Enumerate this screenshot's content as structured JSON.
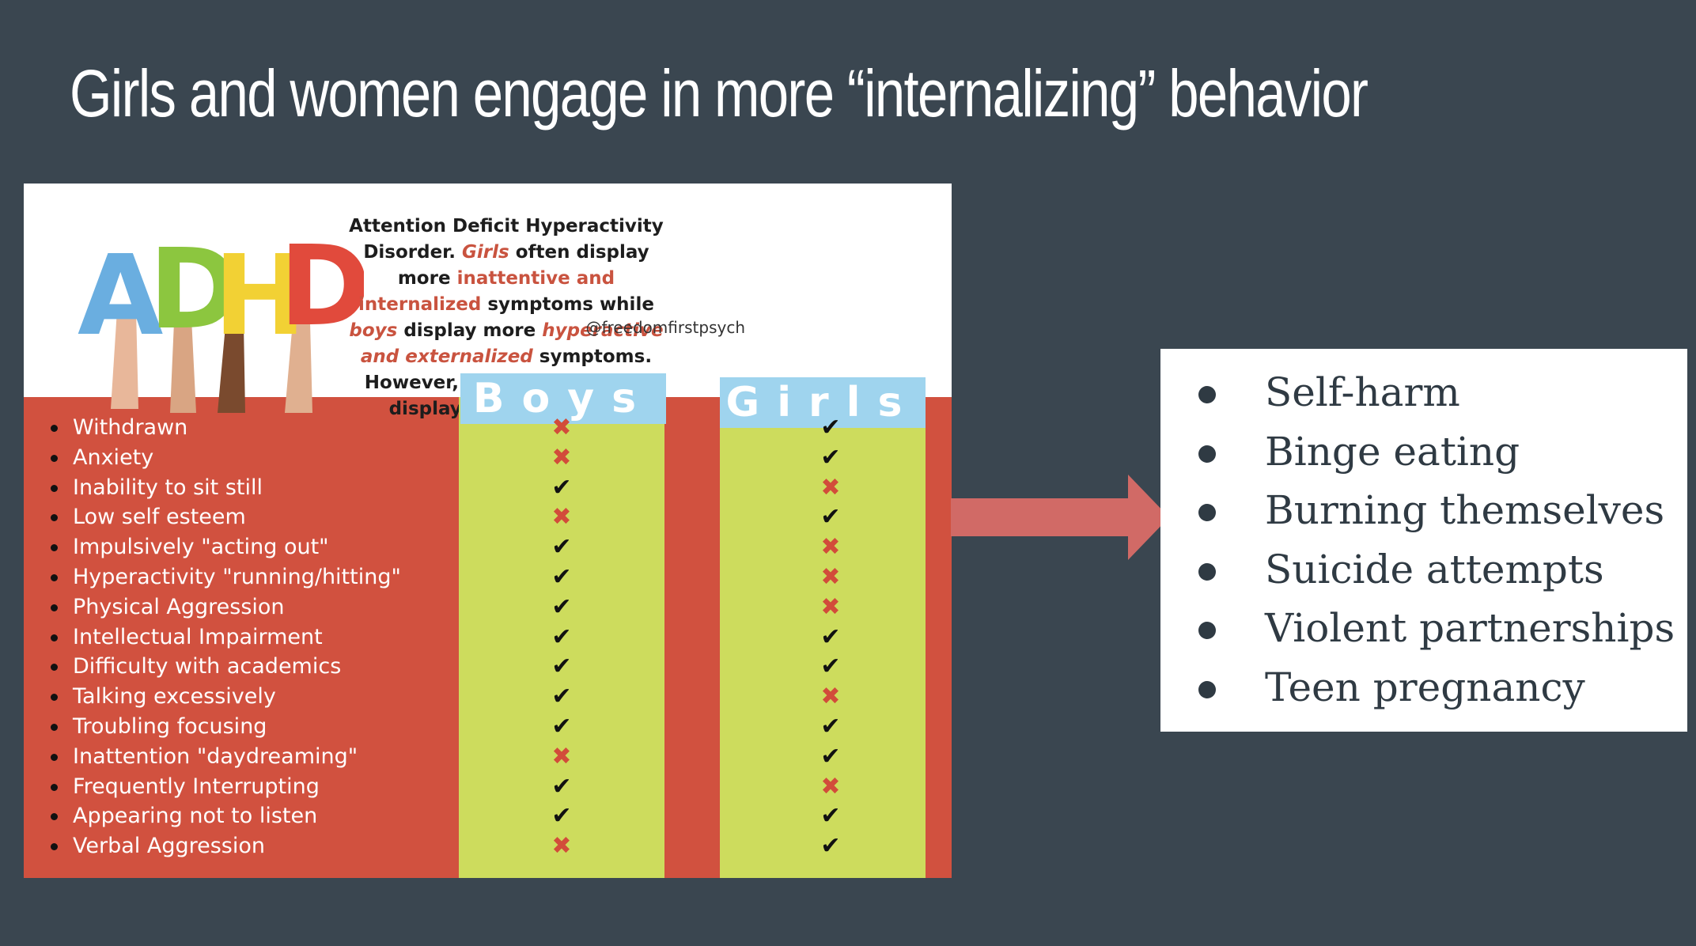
{
  "title": "Girls and women engage in more “internalizing” behavior",
  "infographic": {
    "logo_text": "ADHD",
    "description": {
      "part1": "Attention Deficit Hyperactivity Disorder. ",
      "girls": "Girls",
      "part2": " often display more ",
      "inattentive": "inattentive and internalized",
      "part3": " symptoms while ",
      "boys": "boys",
      "part4": " display more ",
      "hyperactive": "hyperactive and externalized",
      "part5": " symptoms. However, either gender can display an assortment."
    },
    "credit": "@freedomfirstpsych",
    "columns": [
      "Boys",
      "Girls"
    ],
    "rows": [
      {
        "symptom": "Withdrawn",
        "boys": "cross",
        "girls": "check"
      },
      {
        "symptom": "Anxiety",
        "boys": "cross",
        "girls": "check"
      },
      {
        "symptom": "Inability to sit still",
        "boys": "check",
        "girls": "cross"
      },
      {
        "symptom": "Low self esteem",
        "boys": "cross",
        "girls": "check"
      },
      {
        "symptom": "Impulsively \"acting out\"",
        "boys": "check",
        "girls": "cross"
      },
      {
        "symptom": "Hyperactivity \"running/hitting\"",
        "boys": "check",
        "girls": "cross"
      },
      {
        "symptom": "Physical Aggression",
        "boys": "check",
        "girls": "cross"
      },
      {
        "symptom": "Intellectual Impairment",
        "boys": "check",
        "girls": "check"
      },
      {
        "symptom": "Difficulty with academics",
        "boys": "check",
        "girls": "check"
      },
      {
        "symptom": "Talking excessively",
        "boys": "check",
        "girls": "cross"
      },
      {
        "symptom": "Troubling focusing",
        "boys": "check",
        "girls": "check"
      },
      {
        "symptom": "Inattention \"daydreaming\"",
        "boys": "cross",
        "girls": "check"
      },
      {
        "symptom": "Frequently Interrupting",
        "boys": "check",
        "girls": "cross"
      },
      {
        "symptom": "Appearing not to listen",
        "boys": "check",
        "girls": "check"
      },
      {
        "symptom": "Verbal Aggression",
        "boys": "cross",
        "girls": "check"
      }
    ],
    "colors": {
      "background": "#d1513f",
      "column": "#cddc5d",
      "header": "#9fd4ee",
      "cross": "#d24c3a"
    }
  },
  "arrow_color": "#d16a66",
  "behaviors": [
    "Self-harm",
    "Binge eating",
    "Burning themselves",
    "Suicide attempts",
    "Violent partnerships",
    "Teen pregnancy"
  ]
}
